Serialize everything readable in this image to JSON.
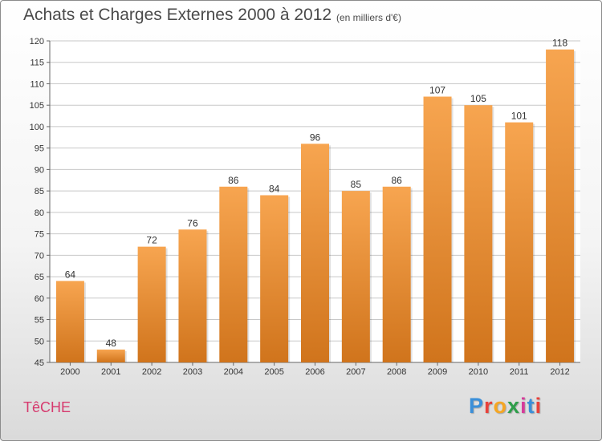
{
  "header": {
    "title": "Achats et Charges Externes 2000 à 2012",
    "subtitle": "(en milliers d'€)"
  },
  "footer": {
    "commune": "TêCHE",
    "brand_letters": [
      "P",
      "r",
      "o",
      "x",
      "i",
      "t",
      "i"
    ],
    "brand_colors": [
      "#3a8fd9",
      "#e8413a",
      "#f5a623",
      "#2e9e4a",
      "#d63a9a",
      "#3a8fd9",
      "#e8413a"
    ]
  },
  "colors": {
    "bar_top": "#f7a550",
    "bar_bottom": "#d0741c",
    "grid": "#c8c8c8"
  },
  "chart_data": {
    "type": "bar",
    "title": "Achats et Charges Externes 2000 à 2012",
    "subtitle": "(en milliers d'€)",
    "categories": [
      "2000",
      "2001",
      "2002",
      "2003",
      "2004",
      "2005",
      "2006",
      "2007",
      "2008",
      "2009",
      "2010",
      "2011",
      "2012"
    ],
    "values": [
      64,
      48,
      72,
      76,
      86,
      84,
      96,
      85,
      86,
      107,
      105,
      101,
      118
    ],
    "ylim": [
      45,
      120
    ],
    "yticks": [
      45,
      50,
      55,
      60,
      65,
      70,
      75,
      80,
      85,
      90,
      95,
      100,
      105,
      110,
      115,
      120
    ],
    "grid": true,
    "xlabel": "",
    "ylabel": ""
  }
}
